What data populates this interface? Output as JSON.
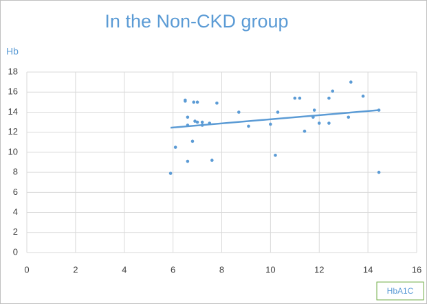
{
  "chart_data": {
    "type": "scatter",
    "title": "In the Non-CKD group",
    "y_label": "Hb",
    "x_label": "HbA1C",
    "color": "#5b9bd5",
    "grid": true,
    "xlim": [
      0,
      16
    ],
    "xticks": [
      0,
      2,
      4,
      6,
      8,
      10,
      12,
      14,
      16
    ],
    "ylim": [
      0,
      18
    ],
    "yticks": [
      0,
      2,
      4,
      6,
      8,
      10,
      12,
      14,
      16,
      18
    ],
    "series": [
      {
        "name": "Hb",
        "color": "#5b9bd5",
        "x": [
          5.9,
          6.1,
          6.5,
          6.5,
          6.6,
          6.6,
          6.6,
          6.8,
          6.85,
          7.0,
          6.9,
          7.0,
          7.2,
          7.2,
          7.5,
          7.6,
          7.8,
          8.7,
          9.1,
          10.0,
          10.2,
          10.3,
          11.0,
          11.2,
          11.4,
          11.8,
          11.75,
          12.0,
          12.4,
          12.4,
          12.55,
          13.2,
          13.3,
          13.8,
          14.45,
          14.45
        ],
        "values": [
          7.9,
          10.5,
          15.1,
          15.2,
          13.5,
          12.7,
          9.1,
          11.1,
          15.0,
          15.0,
          13.1,
          13.0,
          12.7,
          13.0,
          12.9,
          9.2,
          14.9,
          14.0,
          12.6,
          12.8,
          9.7,
          14.0,
          15.4,
          15.4,
          12.1,
          14.2,
          13.5,
          12.9,
          15.4,
          12.9,
          16.1,
          13.5,
          17.0,
          15.6,
          14.2,
          8.0
        ]
      }
    ],
    "trendline": {
      "color": "#5b9bd5",
      "x": [
        5.9,
        14.45
      ],
      "values": [
        12.45,
        14.2
      ]
    }
  }
}
